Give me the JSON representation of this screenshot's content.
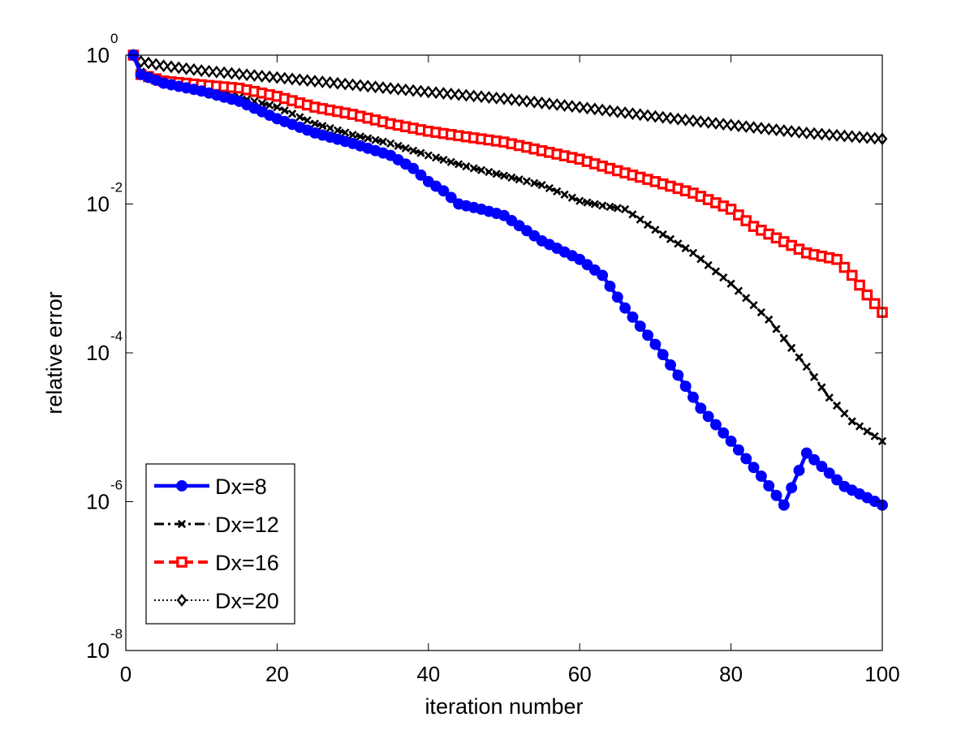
{
  "chart_data": {
    "type": "line",
    "title": "",
    "xlabel": "iteration number",
    "ylabel": "relative error",
    "xlim": [
      0,
      100
    ],
    "ylim": [
      1e-08,
      1
    ],
    "yscale": "log",
    "grid": false,
    "legend_position": "bottom-left",
    "x_ticks": [
      0,
      20,
      40,
      60,
      80,
      100
    ],
    "y_ticks": [
      {
        "value": 1,
        "base": "10",
        "exp": "0"
      },
      {
        "value": 0.01,
        "base": "10",
        "exp": "-2"
      },
      {
        "value": 0.0001,
        "base": "10",
        "exp": "-4"
      },
      {
        "value": 1e-06,
        "base": "10",
        "exp": "-6"
      },
      {
        "value": 1e-08,
        "base": "10",
        "exp": "-8"
      }
    ],
    "series": [
      {
        "name": "Dx=8",
        "color": "#0000ff",
        "style": "solid",
        "marker": "circle",
        "points": [
          [
            1,
            1.0
          ],
          [
            2,
            0.55
          ],
          [
            5,
            0.42
          ],
          [
            10,
            0.33
          ],
          [
            15,
            0.24
          ],
          [
            20,
            0.14
          ],
          [
            25,
            0.09
          ],
          [
            30,
            0.065
          ],
          [
            35,
            0.045
          ],
          [
            38,
            0.03
          ],
          [
            40,
            0.02
          ],
          [
            42,
            0.015
          ],
          [
            44,
            0.01
          ],
          [
            47,
            0.0085
          ],
          [
            50,
            0.007
          ],
          [
            55,
            0.0032
          ],
          [
            60,
            0.0018
          ],
          [
            63,
            0.0011
          ],
          [
            66,
            0.0004
          ],
          [
            70,
            0.00013
          ],
          [
            73,
            5e-05
          ],
          [
            76,
            1.8e-05
          ],
          [
            80,
            6.5e-06
          ],
          [
            84,
            2.2e-06
          ],
          [
            87,
            9e-07
          ],
          [
            90,
            4.5e-06
          ],
          [
            95,
            1.6e-06
          ],
          [
            100,
            9e-07
          ]
        ]
      },
      {
        "name": "Dx=12",
        "color": "#000000",
        "style": "dashdot",
        "marker": "x",
        "points": [
          [
            1,
            1.0
          ],
          [
            2,
            0.6
          ],
          [
            5,
            0.42
          ],
          [
            10,
            0.32
          ],
          [
            15,
            0.27
          ],
          [
            20,
            0.2
          ],
          [
            25,
            0.12
          ],
          [
            30,
            0.085
          ],
          [
            35,
            0.065
          ],
          [
            40,
            0.045
          ],
          [
            45,
            0.032
          ],
          [
            50,
            0.024
          ],
          [
            55,
            0.018
          ],
          [
            60,
            0.011
          ],
          [
            63,
            0.0095
          ],
          [
            66,
            0.0085
          ],
          [
            70,
            0.0045
          ],
          [
            75,
            0.0022
          ],
          [
            80,
            0.00085
          ],
          [
            85,
            0.00028
          ],
          [
            90,
            6.5e-05
          ],
          [
            93,
            2.5e-05
          ],
          [
            96,
            1.2e-05
          ],
          [
            100,
            6.5e-06
          ]
        ]
      },
      {
        "name": "Dx=16",
        "color": "#ff0000",
        "style": "dashed",
        "marker": "square",
        "points": [
          [
            1,
            1.0
          ],
          [
            2,
            0.55
          ],
          [
            5,
            0.45
          ],
          [
            10,
            0.4
          ],
          [
            15,
            0.36
          ],
          [
            20,
            0.28
          ],
          [
            25,
            0.2
          ],
          [
            30,
            0.16
          ],
          [
            35,
            0.12
          ],
          [
            40,
            0.095
          ],
          [
            45,
            0.08
          ],
          [
            50,
            0.068
          ],
          [
            55,
            0.052
          ],
          [
            60,
            0.04
          ],
          [
            65,
            0.028
          ],
          [
            70,
            0.02
          ],
          [
            75,
            0.014
          ],
          [
            80,
            0.0085
          ],
          [
            83,
            0.005
          ],
          [
            86,
            0.0035
          ],
          [
            90,
            0.0022
          ],
          [
            94,
            0.0018
          ],
          [
            96,
            0.0011
          ],
          [
            98,
            0.0006
          ],
          [
            100,
            0.00035
          ]
        ]
      },
      {
        "name": "Dx=20",
        "color": "#000000",
        "style": "dotted",
        "marker": "diamond",
        "points": [
          [
            1,
            1.0
          ],
          [
            2,
            0.82
          ],
          [
            5,
            0.72
          ],
          [
            10,
            0.62
          ],
          [
            20,
            0.5
          ],
          [
            30,
            0.4
          ],
          [
            40,
            0.32
          ],
          [
            50,
            0.26
          ],
          [
            60,
            0.2
          ],
          [
            70,
            0.15
          ],
          [
            80,
            0.115
          ],
          [
            90,
            0.09
          ],
          [
            100,
            0.075
          ]
        ]
      }
    ]
  }
}
